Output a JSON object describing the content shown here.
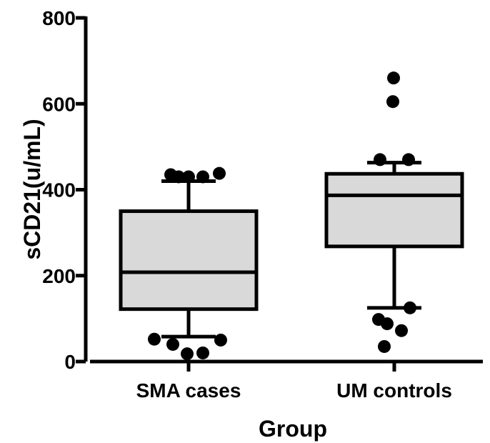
{
  "chart_data": {
    "type": "box",
    "title": "",
    "xlabel": "Group",
    "ylabel": "sCD21(u/mL)",
    "ylim": [
      0,
      800
    ],
    "yticks": [
      0,
      200,
      400,
      600,
      800
    ],
    "tick_labels": [
      "0",
      "200",
      "400",
      "600",
      "800"
    ],
    "categories": [
      "SMA cases",
      "UM controls"
    ],
    "box_fill": "#d9d9d9",
    "stroke_color": "#000000",
    "boxes": [
      {
        "category": "SMA cases",
        "whisker_low": 58,
        "q1": 122,
        "median": 208,
        "q3": 350,
        "whisker_high": 420,
        "outliers": [
          435,
          430,
          430,
          430,
          438,
          52,
          50,
          40,
          18,
          20
        ]
      },
      {
        "category": "UM controls",
        "whisker_low": 125,
        "q1": 268,
        "median": 387,
        "q3": 437,
        "whisker_high": 463,
        "outliers": [
          660,
          605,
          470,
          470,
          125,
          98,
          88,
          72,
          35
        ]
      }
    ]
  }
}
